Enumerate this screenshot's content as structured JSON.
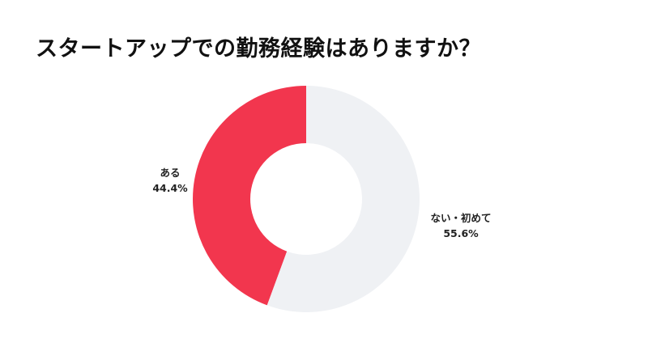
{
  "title": "スタートアップでの勤務経験はありますか？",
  "chart_data": {
    "type": "pie",
    "style": "donut",
    "title": "スタートアップでの勤務経験はありますか？",
    "slices": [
      {
        "label": "ある",
        "value": 44.4,
        "value_label": "44.4%",
        "color": "#F2364E"
      },
      {
        "label": "ない・初めて",
        "value": 55.6,
        "value_label": "55.6%",
        "color": "#EFF1F4"
      }
    ],
    "start": "top",
    "direction": "counterclockwise",
    "legend": "none"
  }
}
